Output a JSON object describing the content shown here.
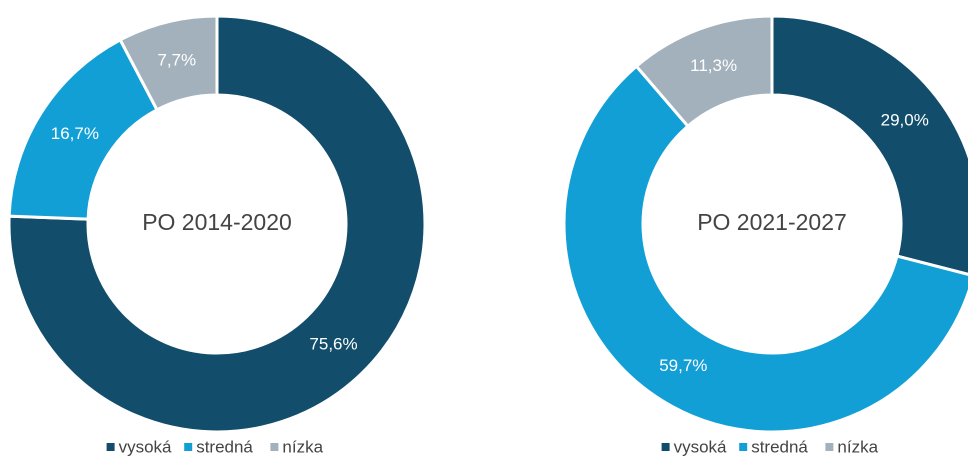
{
  "chart_data": [
    {
      "type": "pie",
      "title": "PO 2014-2020",
      "categories": [
        "vysoká",
        "stredná",
        "nízka"
      ],
      "values": [
        75.6,
        16.7,
        7.7
      ],
      "value_labels": [
        "75,6%",
        "16,7%",
        "7,7%"
      ],
      "colors": [
        "#124e6b",
        "#129fd6",
        "#a3b1bd"
      ]
    },
    {
      "type": "pie",
      "title": "PO 2021-2027",
      "categories": [
        "vysoká",
        "stredná",
        "nízka"
      ],
      "values": [
        29.0,
        59.7,
        11.3
      ],
      "value_labels": [
        "29,0%",
        "59,7%",
        "11,3%"
      ],
      "colors": [
        "#124e6b",
        "#129fd6",
        "#a3b1bd"
      ]
    }
  ]
}
